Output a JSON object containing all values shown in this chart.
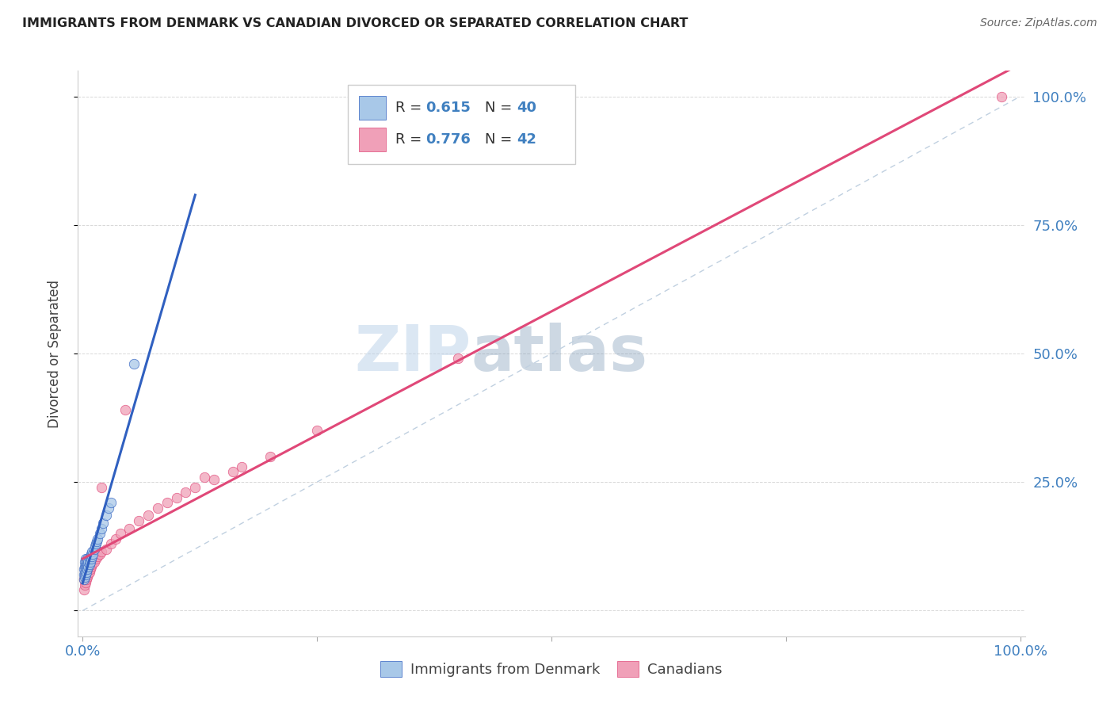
{
  "title": "IMMIGRANTS FROM DENMARK VS CANADIAN DIVORCED OR SEPARATED CORRELATION CHART",
  "source": "Source: ZipAtlas.com",
  "ylabel": "Divorced or Separated",
  "legend_r1": "R = 0.615",
  "legend_n1": "N = 40",
  "legend_r2": "R = 0.776",
  "legend_n2": "N = 42",
  "color_blue": "#a8c8e8",
  "color_pink": "#f0a0b8",
  "line_blue": "#3060c0",
  "line_pink": "#e04878",
  "line_diag": "#c0d0e0",
  "watermark_zip": "ZIP",
  "watermark_atlas": "atlas",
  "background_color": "#ffffff",
  "grid_color": "#d8d8d8",
  "dk_x": [
    0.001,
    0.001,
    0.001,
    0.002,
    0.002,
    0.002,
    0.002,
    0.003,
    0.003,
    0.003,
    0.003,
    0.004,
    0.004,
    0.004,
    0.005,
    0.005,
    0.005,
    0.006,
    0.006,
    0.007,
    0.007,
    0.008,
    0.008,
    0.009,
    0.009,
    0.01,
    0.01,
    0.011,
    0.012,
    0.013,
    0.014,
    0.015,
    0.016,
    0.018,
    0.02,
    0.022,
    0.025,
    0.028,
    0.03,
    0.055
  ],
  "dk_y": [
    0.06,
    0.07,
    0.08,
    0.065,
    0.075,
    0.085,
    0.095,
    0.07,
    0.08,
    0.09,
    0.1,
    0.075,
    0.085,
    0.095,
    0.08,
    0.09,
    0.1,
    0.085,
    0.095,
    0.09,
    0.1,
    0.095,
    0.105,
    0.1,
    0.11,
    0.105,
    0.115,
    0.11,
    0.12,
    0.125,
    0.13,
    0.135,
    0.14,
    0.15,
    0.16,
    0.17,
    0.185,
    0.2,
    0.21,
    0.48
  ],
  "ca_x": [
    0.001,
    0.001,
    0.002,
    0.002,
    0.003,
    0.003,
    0.004,
    0.004,
    0.005,
    0.005,
    0.006,
    0.007,
    0.008,
    0.009,
    0.01,
    0.012,
    0.014,
    0.016,
    0.018,
    0.02,
    0.025,
    0.03,
    0.035,
    0.04,
    0.05,
    0.06,
    0.07,
    0.08,
    0.09,
    0.1,
    0.12,
    0.14,
    0.16,
    0.2,
    0.25,
    0.02,
    0.045,
    0.11,
    0.13,
    0.17,
    0.4,
    0.98
  ],
  "ca_y": [
    0.04,
    0.06,
    0.05,
    0.07,
    0.055,
    0.075,
    0.06,
    0.08,
    0.065,
    0.085,
    0.07,
    0.075,
    0.08,
    0.085,
    0.09,
    0.095,
    0.1,
    0.105,
    0.11,
    0.115,
    0.12,
    0.13,
    0.14,
    0.15,
    0.16,
    0.175,
    0.185,
    0.2,
    0.21,
    0.22,
    0.24,
    0.255,
    0.27,
    0.3,
    0.35,
    0.24,
    0.39,
    0.23,
    0.26,
    0.28,
    0.49,
    1.0
  ],
  "xlim": [
    -0.005,
    1.005
  ],
  "ylim": [
    -0.05,
    1.05
  ],
  "x_ticks": [
    0.0,
    0.25,
    0.5,
    0.75,
    1.0
  ],
  "y_ticks": [
    0.0,
    0.25,
    0.5,
    0.75,
    1.0
  ],
  "x_tick_labels": [
    "0.0%",
    "",
    "",
    "",
    "100.0%"
  ],
  "y_tick_labels_right": [
    "",
    "25.0%",
    "50.0%",
    "75.0%",
    "100.0%"
  ]
}
